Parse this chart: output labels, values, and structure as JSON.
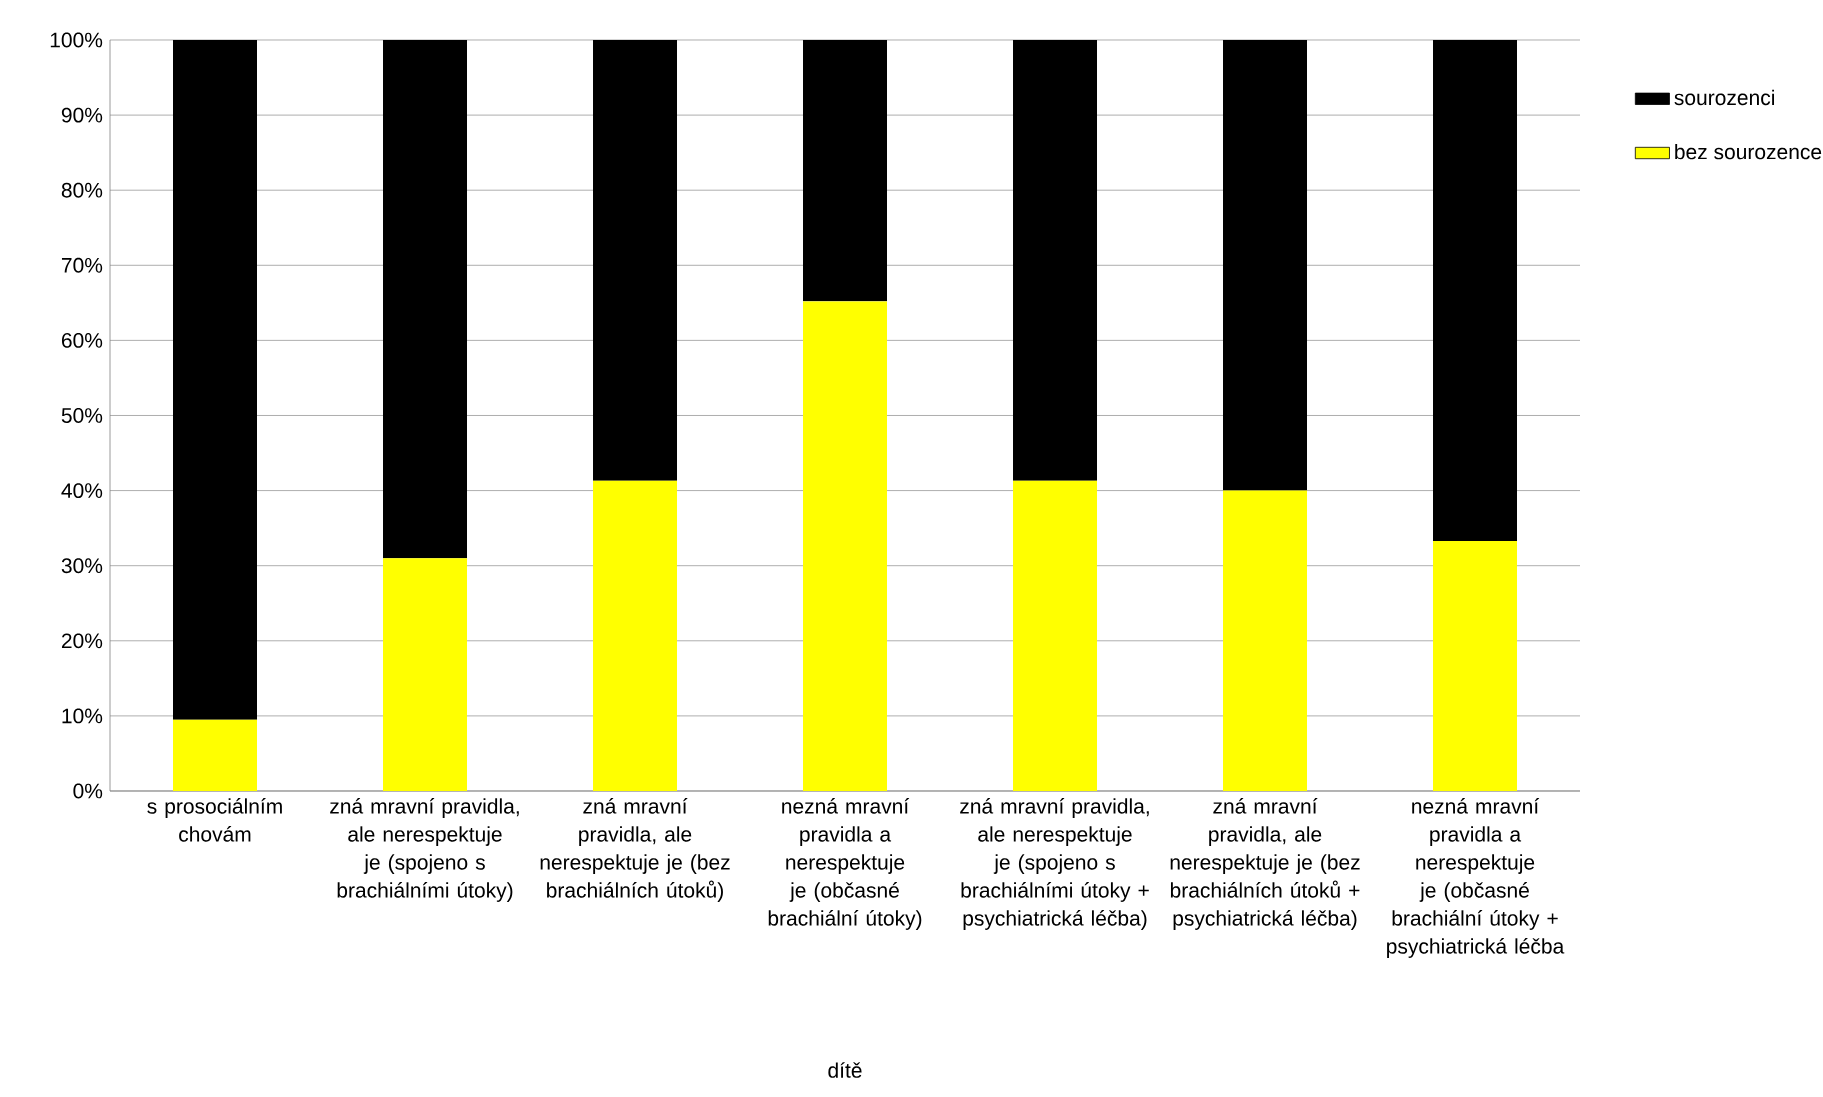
{
  "chart_data": {
    "type": "bar",
    "stacked": true,
    "xlabel": "dítě",
    "categories": [
      "s prosociálním chovám",
      "zná mravní pravidla, ale nerespektuje je (spojeno s brachiálními útoky)",
      "zná mravní pravidla, ale nerespektuje je (bez brachiálních útoků)",
      "nezná mravní pravidla a nerespektuje je (občasné brachiální útoky)",
      "zná mravní pravidla, ale nerespektuje je (spojeno s brachiálními útoky + psychiatrická léčba)",
      "zná mravní pravidla, ale nerespektuje je (bez brachiálních útoků + psychiatrická léčba)",
      "nezná mravní pravidla a nerespektuje je (občasné brachiální útoky + psychiatrická léčba"
    ],
    "series": [
      {
        "name": "bez sourozence",
        "color": "#ffff00",
        "values": [
          9.5,
          31,
          41.3,
          65.2,
          41.3,
          40,
          33.3
        ]
      },
      {
        "name": "sourozenci",
        "color": "#000000",
        "values": [
          90.5,
          69,
          58.7,
          34.8,
          58.7,
          60,
          66.7
        ]
      }
    ],
    "ylim": [
      0,
      100
    ],
    "yticks": [
      {
        "value": 0,
        "label": "0%"
      },
      {
        "value": 10,
        "label": "10%"
      },
      {
        "value": 20,
        "label": "20%"
      },
      {
        "value": 30,
        "label": "30%"
      },
      {
        "value": 40,
        "label": "40%"
      },
      {
        "value": 50,
        "label": "50%"
      },
      {
        "value": 60,
        "label": "60%"
      },
      {
        "value": 70,
        "label": "70%"
      },
      {
        "value": 80,
        "label": "80%"
      },
      {
        "value": 90,
        "label": "90%"
      },
      {
        "value": 100,
        "label": "100%"
      }
    ],
    "grid": "y",
    "legend": "top right"
  }
}
